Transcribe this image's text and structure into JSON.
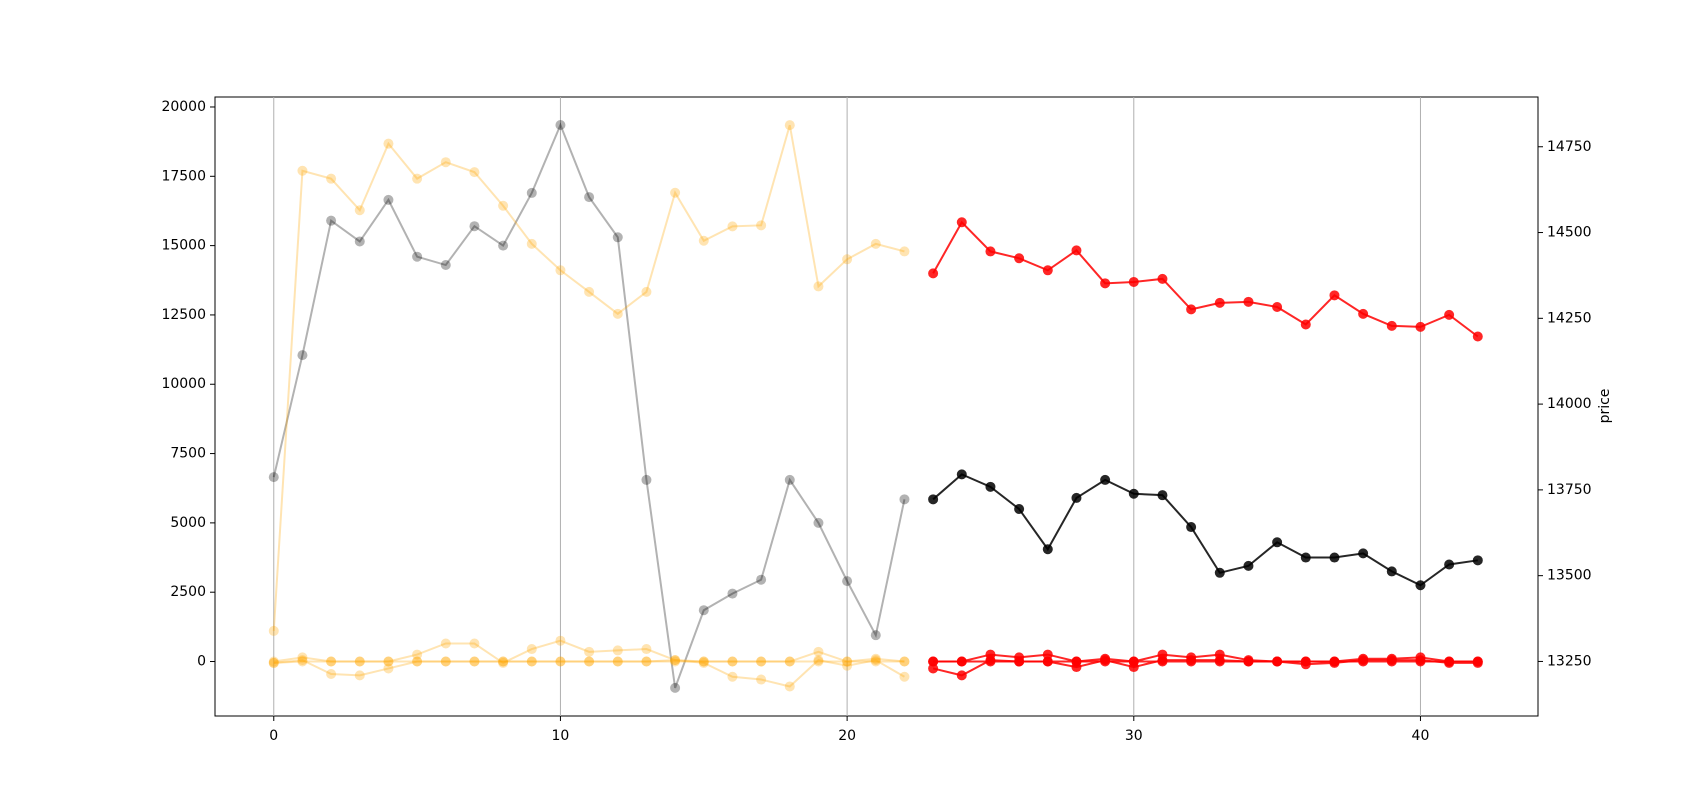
{
  "chart_data": {
    "type": "line",
    "xlim": [
      -2.05,
      44.1
    ],
    "xticks": [
      0,
      10,
      20,
      30,
      40
    ],
    "ylim": [
      -1965,
      20360
    ],
    "yticks": [
      0,
      2500,
      5000,
      7500,
      10000,
      12500,
      15000,
      17500,
      20000
    ],
    "y2lim": [
      13091,
      14895
    ],
    "y2ticks": [
      13250,
      13500,
      13750,
      14000,
      14250,
      14500,
      14750
    ],
    "y2label": "price",
    "grid": "x",
    "series": [
      {
        "color": "#000000",
        "alpha": 0.3,
        "x": [
          0,
          1,
          2,
          3,
          4,
          5,
          6,
          7,
          8,
          9,
          10,
          11,
          12,
          13,
          14,
          15,
          16,
          17,
          18,
          19,
          20,
          21,
          22
        ],
        "values": [
          6650,
          11050,
          15900,
          15150,
          16650,
          14600,
          14300,
          15700,
          15000,
          16900,
          19350,
          16750,
          15300,
          6550,
          -950,
          1850,
          2450,
          2950,
          6550,
          5000,
          2900,
          950,
          5850
        ]
      },
      {
        "color": "#ffa500",
        "alpha": 0.3,
        "axis": "y2",
        "x": [
          0,
          1,
          2,
          3,
          4,
          5,
          6,
          7,
          8,
          9,
          10,
          11,
          12,
          13,
          14,
          15,
          16,
          17,
          18,
          19,
          20,
          21,
          22
        ],
        "values": [
          13339,
          14680,
          14657,
          14565,
          14759,
          14657,
          14705,
          14676,
          14578,
          14467,
          14390,
          14327,
          14263,
          14327,
          14616,
          14476,
          14518,
          14521,
          14813,
          14343,
          14422,
          14467,
          14445
        ]
      },
      {
        "color": "#ffa500",
        "alpha": 0.3,
        "x": [
          0,
          1,
          2,
          3,
          4,
          5,
          6,
          7,
          8,
          9,
          10,
          11,
          12,
          13,
          14,
          15,
          16,
          17,
          18,
          19,
          20,
          21,
          22
        ],
        "values": [
          -50,
          0,
          0,
          0,
          0,
          0,
          0,
          0,
          0,
          0,
          0,
          0,
          0,
          0,
          0,
          0,
          0,
          0,
          0,
          0,
          0,
          0,
          0
        ]
      },
      {
        "color": "#ffa500",
        "alpha": 0.3,
        "x": [
          0,
          1,
          2,
          3,
          4,
          5,
          6,
          7,
          8,
          9,
          10,
          11,
          12,
          13,
          14,
          15,
          16,
          17,
          18,
          19,
          20,
          21,
          22
        ],
        "values": [
          0,
          150,
          0,
          0,
          0,
          250,
          650,
          650,
          -50,
          450,
          750,
          350,
          400,
          450,
          50,
          0,
          0,
          0,
          0,
          350,
          0,
          100,
          0
        ]
      },
      {
        "color": "#ffa500",
        "alpha": 0.3,
        "x": [
          0,
          1,
          2,
          3,
          4,
          5,
          6,
          7,
          8,
          9,
          10,
          11,
          12,
          13,
          14,
          15,
          16,
          17,
          18,
          19,
          20,
          21,
          22
        ],
        "values": [
          -50,
          50,
          -450,
          -500,
          -250,
          0,
          0,
          0,
          0,
          0,
          0,
          0,
          0,
          0,
          50,
          -50,
          -550,
          -650,
          -900,
          50,
          -150,
          50,
          -550
        ]
      },
      {
        "color": "#000000",
        "alpha": 0.85,
        "x": [
          23,
          24,
          25,
          26,
          27,
          28,
          29,
          30,
          31,
          32,
          33,
          34,
          35,
          36,
          37,
          38,
          39,
          40,
          41,
          42
        ],
        "values": [
          5850,
          6750,
          6300,
          5500,
          4050,
          5900,
          6550,
          6050,
          6000,
          4850,
          3200,
          3450,
          4300,
          3750,
          3750,
          3900,
          3250,
          2750,
          3500,
          3650
        ]
      },
      {
        "color": "#ff0000",
        "alpha": 0.85,
        "axis": "y2",
        "x": [
          23,
          24,
          25,
          26,
          27,
          28,
          29,
          30,
          31,
          32,
          33,
          34,
          35,
          36,
          37,
          38,
          39,
          40,
          41,
          42
        ],
        "values": [
          14381,
          14530,
          14445,
          14425,
          14390,
          14448,
          14352,
          14356,
          14365,
          14276,
          14295,
          14298,
          14283,
          14232,
          14317,
          14263,
          14228,
          14225,
          14260,
          14197
        ]
      },
      {
        "color": "#ff0000",
        "alpha": 0.85,
        "x": [
          23,
          24,
          25,
          26,
          27,
          28,
          29,
          30,
          31,
          32,
          33,
          34,
          35,
          36,
          37,
          38,
          39,
          40,
          41,
          42
        ],
        "values": [
          0,
          0,
          0,
          0,
          0,
          0,
          0,
          0,
          0,
          0,
          0,
          0,
          0,
          0,
          0,
          0,
          0,
          0,
          0,
          0
        ]
      },
      {
        "color": "#ff0000",
        "alpha": 0.85,
        "x": [
          23,
          24,
          25,
          26,
          27,
          28,
          29,
          30,
          31,
          32,
          33,
          34,
          35,
          36,
          37,
          38,
          39,
          40,
          41,
          42
        ],
        "values": [
          0,
          0,
          250,
          150,
          250,
          0,
          100,
          0,
          250,
          150,
          250,
          50,
          0,
          0,
          0,
          100,
          100,
          150,
          0,
          0
        ]
      },
      {
        "color": "#ff0000",
        "alpha": 0.85,
        "x": [
          23,
          24,
          25,
          26,
          27,
          28,
          29,
          30,
          31,
          32,
          33,
          34,
          35,
          36,
          37,
          38,
          39,
          40,
          41,
          42
        ],
        "values": [
          -250,
          -500,
          50,
          0,
          0,
          -200,
          50,
          -200,
          50,
          50,
          50,
          0,
          0,
          -100,
          -50,
          50,
          50,
          50,
          -50,
          -50
        ]
      }
    ]
  }
}
